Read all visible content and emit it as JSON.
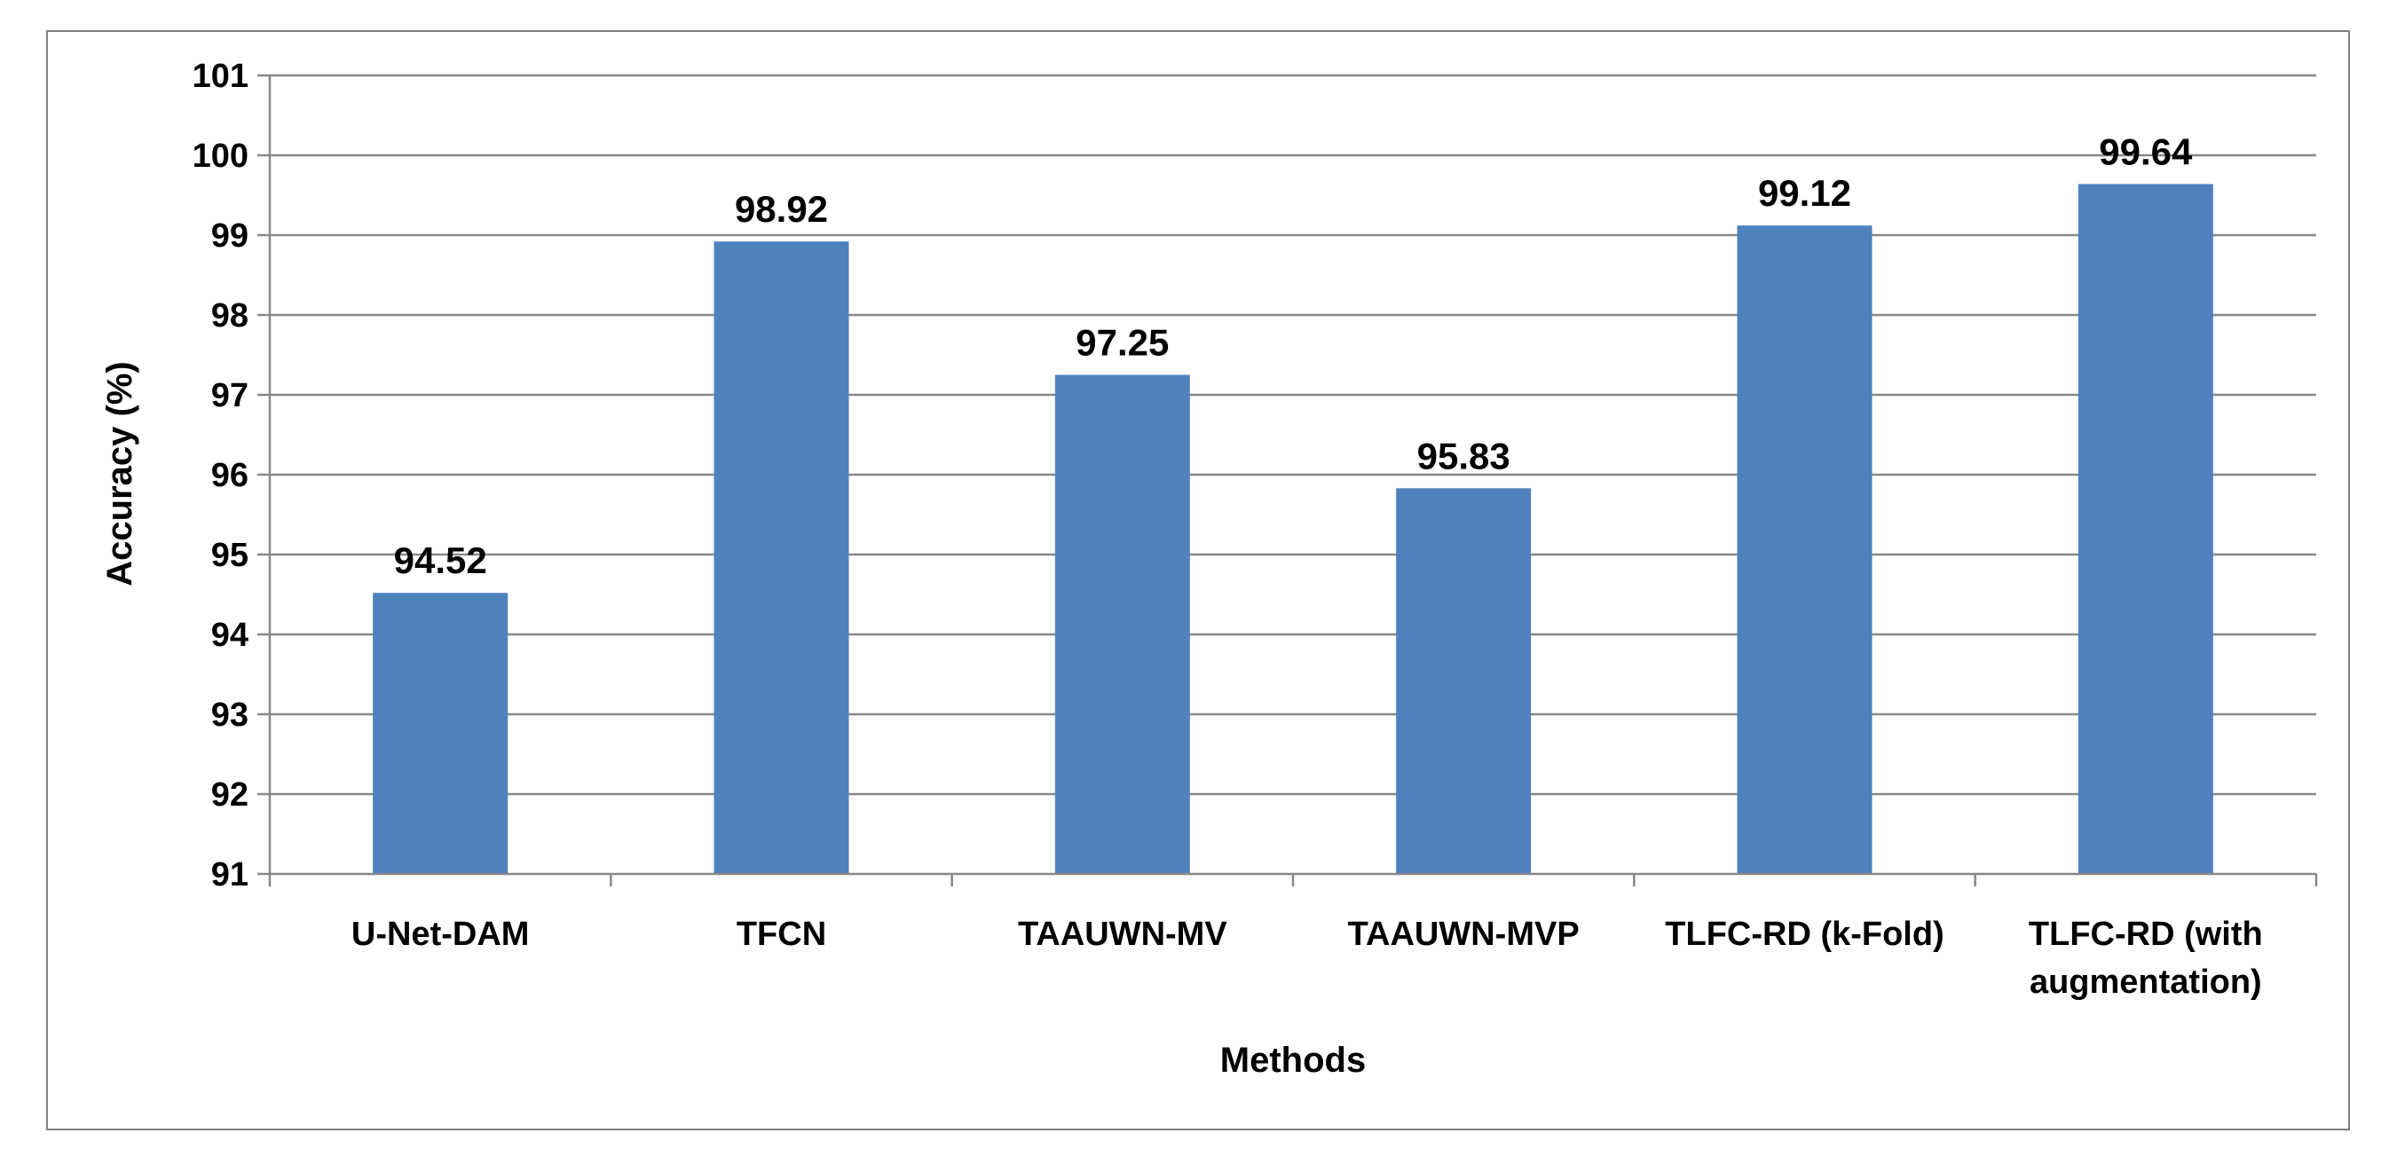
{
  "chart_data": {
    "type": "bar",
    "title": "",
    "xlabel": "Methods",
    "ylabel": "Accuracy (%)",
    "ylim": [
      91,
      101
    ],
    "yticks": [
      91,
      92,
      93,
      94,
      95,
      96,
      97,
      98,
      99,
      100,
      101
    ],
    "grid": true,
    "categories": [
      [
        "U-Net-DAM"
      ],
      [
        "TFCN"
      ],
      [
        "TAAUWN-MV"
      ],
      [
        "TAAUWN-MVP"
      ],
      [
        "TLFC-RD (k-Fold)"
      ],
      [
        "TLFC-RD (with",
        "augmentation)"
      ]
    ],
    "values": [
      94.52,
      98.92,
      97.25,
      95.83,
      99.12,
      99.64
    ],
    "data_labels": [
      "94.52",
      "98.92",
      "97.25",
      "95.83",
      "99.12",
      "99.64"
    ],
    "colors": {
      "bar": "#4f81bd",
      "grid": "#888888",
      "axis": "#888888"
    }
  }
}
